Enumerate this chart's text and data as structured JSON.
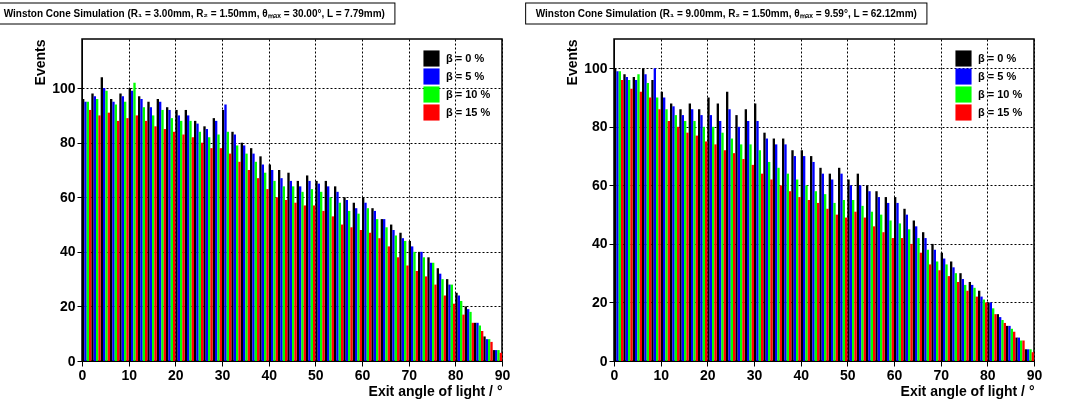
{
  "chart_data": [
    {
      "type": "histogram",
      "title": "Winston Cone Simulation (R₁ = 3.00mm, R₂ = 1.50mm, θₘₐₓ = 30.00°, L = 7.79mm)",
      "xlabel": "Exit angle of light / °",
      "ylabel": "Events",
      "bins": [
        0,
        2,
        4,
        6,
        8,
        10,
        12,
        14,
        16,
        18,
        20,
        22,
        24,
        26,
        28,
        30,
        32,
        34,
        36,
        38,
        40,
        42,
        44,
        46,
        48,
        50,
        52,
        54,
        56,
        58,
        60,
        62,
        64,
        66,
        68,
        70,
        72,
        74,
        76,
        78,
        80,
        82,
        84,
        86,
        88,
        90
      ],
      "series": [
        {
          "name": "β = 0 %",
          "color": "#000000",
          "values": [
            96,
            98,
            104,
            96,
            98,
            100,
            97,
            95,
            96,
            93,
            92,
            92,
            88,
            86,
            89,
            92,
            84,
            80,
            78,
            75,
            72,
            70,
            69,
            66,
            68,
            66,
            66,
            64,
            60,
            58,
            60,
            56,
            52,
            50,
            47,
            44,
            40,
            38,
            34,
            30,
            25,
            20,
            14,
            9,
            4
          ]
        },
        {
          "name": "β = 5 %",
          "color": "#0000ff",
          "values": [
            95,
            97,
            100,
            95,
            97,
            99,
            96,
            93,
            95,
            92,
            90,
            90,
            87,
            85,
            88,
            94,
            83,
            79,
            76,
            72,
            70,
            67,
            66,
            64,
            66,
            65,
            64,
            62,
            59,
            56,
            58,
            55,
            52,
            48,
            45,
            42,
            40,
            36,
            32,
            28,
            24,
            19,
            14,
            8,
            4
          ]
        },
        {
          "name": "β = 10 %",
          "color": "#00ff00",
          "values": [
            95,
            96,
            99,
            94,
            95,
            102,
            93,
            90,
            92,
            89,
            88,
            88,
            84,
            82,
            83,
            84,
            79,
            76,
            73,
            69,
            66,
            64,
            64,
            62,
            63,
            62,
            60,
            58,
            55,
            54,
            56,
            52,
            49,
            46,
            44,
            40,
            38,
            36,
            30,
            28,
            22,
            18,
            13,
            8,
            4
          ]
        },
        {
          "name": "β = 15 %",
          "color": "#ff0000",
          "values": [
            92,
            90,
            91,
            88,
            89,
            90,
            88,
            86,
            85,
            84,
            83,
            82,
            80,
            78,
            78,
            76,
            73,
            70,
            67,
            63,
            60,
            59,
            58,
            57,
            57,
            55,
            53,
            50,
            49,
            48,
            47,
            45,
            42,
            38,
            35,
            33,
            31,
            28,
            24,
            21,
            17,
            14,
            11,
            7,
            3
          ]
        }
      ],
      "xlim": [
        0,
        90
      ],
      "ylim": [
        0,
        118
      ],
      "xticks": [
        0,
        10,
        20,
        30,
        40,
        50,
        60,
        70,
        80,
        90
      ],
      "yticks": [
        0,
        20,
        40,
        60,
        80,
        100
      ],
      "grid": true,
      "legend": "top right"
    },
    {
      "type": "histogram",
      "title": "Winston Cone Simulation (R₁ = 9.00mm, R₂ = 1.50mm, θₘₐₓ = 9.59°, L = 62.12mm)",
      "xlabel": "Exit angle of light / °",
      "ylabel": "Events",
      "bins": [
        0,
        2,
        4,
        6,
        8,
        10,
        12,
        14,
        16,
        18,
        20,
        22,
        24,
        26,
        28,
        30,
        32,
        34,
        36,
        38,
        40,
        42,
        44,
        46,
        48,
        50,
        52,
        54,
        56,
        58,
        60,
        62,
        64,
        66,
        68,
        70,
        72,
        74,
        76,
        78,
        80,
        82,
        84,
        86,
        88,
        90
      ],
      "series": [
        {
          "name": "β = 0 %",
          "color": "#000000",
          "values": [
            100,
            98,
            97,
            100,
            96,
            92,
            88,
            86,
            88,
            86,
            90,
            88,
            92,
            84,
            86,
            88,
            78,
            76,
            76,
            72,
            72,
            70,
            66,
            64,
            66,
            62,
            64,
            60,
            58,
            56,
            56,
            52,
            48,
            44,
            40,
            37,
            34,
            30,
            27,
            24,
            20,
            16,
            12,
            8,
            4
          ]
        },
        {
          "name": "β = 5 %",
          "color": "#0000ff",
          "values": [
            99,
            97,
            96,
            98,
            100,
            90,
            87,
            84,
            86,
            84,
            84,
            82,
            86,
            80,
            82,
            82,
            76,
            74,
            74,
            70,
            70,
            68,
            64,
            62,
            64,
            60,
            60,
            58,
            56,
            54,
            54,
            50,
            46,
            42,
            38,
            35,
            32,
            28,
            26,
            22,
            20,
            15,
            12,
            8,
            4
          ]
        },
        {
          "name": "β = 10 %",
          "color": "#00ff00",
          "values": [
            99,
            96,
            98,
            95,
            90,
            86,
            84,
            82,
            82,
            80,
            80,
            78,
            76,
            74,
            74,
            72,
            68,
            66,
            64,
            62,
            60,
            58,
            57,
            54,
            55,
            55,
            53,
            51,
            50,
            48,
            47,
            45,
            42,
            38,
            34,
            33,
            30,
            26,
            25,
            21,
            18,
            14,
            11,
            7,
            4
          ]
        },
        {
          "name": "β = 15 %",
          "color": "#ff0000",
          "values": [
            96,
            93,
            92,
            90,
            86,
            82,
            80,
            78,
            77,
            75,
            74,
            72,
            71,
            69,
            67,
            64,
            62,
            60,
            58,
            56,
            55,
            54,
            52,
            50,
            49,
            51,
            49,
            46,
            44,
            42,
            42,
            40,
            37,
            33,
            31,
            29,
            27,
            24,
            22,
            20,
            16,
            13,
            10,
            7,
            3
          ]
        }
      ],
      "xlim": [
        0,
        90
      ],
      "ylim": [
        0,
        110
      ],
      "xticks": [
        0,
        10,
        20,
        30,
        40,
        50,
        60,
        70,
        80,
        90
      ],
      "yticks": [
        0,
        20,
        40,
        60,
        80,
        100
      ],
      "grid": true,
      "legend": "top right"
    }
  ]
}
